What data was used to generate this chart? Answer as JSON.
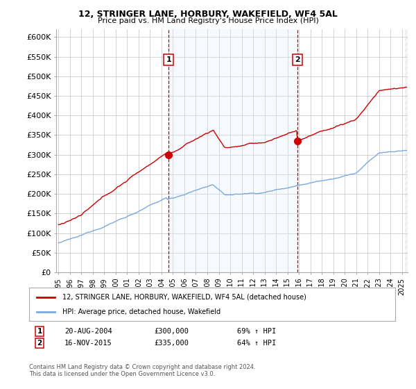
{
  "title1": "12, STRINGER LANE, HORBURY, WAKEFIELD, WF4 5AL",
  "title2": "Price paid vs. HM Land Registry's House Price Index (HPI)",
  "ylabel_ticks": [
    "£0",
    "£50K",
    "£100K",
    "£150K",
    "£200K",
    "£250K",
    "£300K",
    "£350K",
    "£400K",
    "£450K",
    "£500K",
    "£550K",
    "£600K"
  ],
  "ytick_vals": [
    0,
    50000,
    100000,
    150000,
    200000,
    250000,
    300000,
    350000,
    400000,
    450000,
    500000,
    550000,
    600000
  ],
  "ylim": [
    0,
    620000
  ],
  "xlim_start": 1994.8,
  "xlim_end": 2025.5,
  "purchase1_x": 2004.638,
  "purchase1_y": 300000,
  "purchase2_x": 2015.877,
  "purchase2_y": 335000,
  "purchase1_label": "1",
  "purchase2_label": "2",
  "purchase1_date": "20-AUG-2004",
  "purchase1_price": "£300,000",
  "purchase1_hpi": "69% ↑ HPI",
  "purchase2_date": "16-NOV-2015",
  "purchase2_price": "£335,000",
  "purchase2_hpi": "64% ↑ HPI",
  "legend_line1": "12, STRINGER LANE, HORBURY, WAKEFIELD, WF4 5AL (detached house)",
  "legend_line2": "HPI: Average price, detached house, Wakefield",
  "footnote": "Contains HM Land Registry data © Crown copyright and database right 2024.\nThis data is licensed under the Open Government Licence v3.0.",
  "line_color_red": "#cc0000",
  "line_color_blue": "#7aaadd",
  "vline_color": "#cc0000",
  "shade_color": "#ddeeff",
  "hatch_color": "#cccccc",
  "background_color": "#ffffff",
  "grid_color": "#cccccc"
}
